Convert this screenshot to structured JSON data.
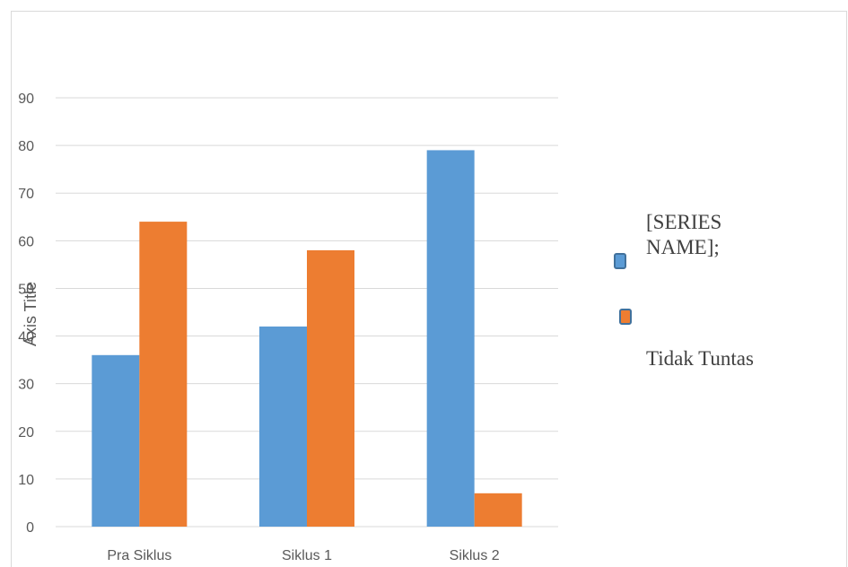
{
  "chart_data": {
    "type": "bar",
    "categories": [
      "Pra Siklus",
      "Siklus 1",
      "Siklus 2"
    ],
    "series": [
      {
        "name": "[SERIES NAME];",
        "color": "#5b9bd5",
        "values": [
          36,
          42,
          79
        ]
      },
      {
        "name": "Tidak Tuntas",
        "color": "#ed7d31",
        "values": [
          64,
          58,
          7
        ]
      }
    ],
    "ylabel": "Axis Title",
    "ylim": [
      0,
      90
    ],
    "yticks": [
      0,
      10,
      20,
      30,
      40,
      50,
      60,
      70,
      80,
      90
    ],
    "grid": true,
    "legend_position": "right"
  }
}
